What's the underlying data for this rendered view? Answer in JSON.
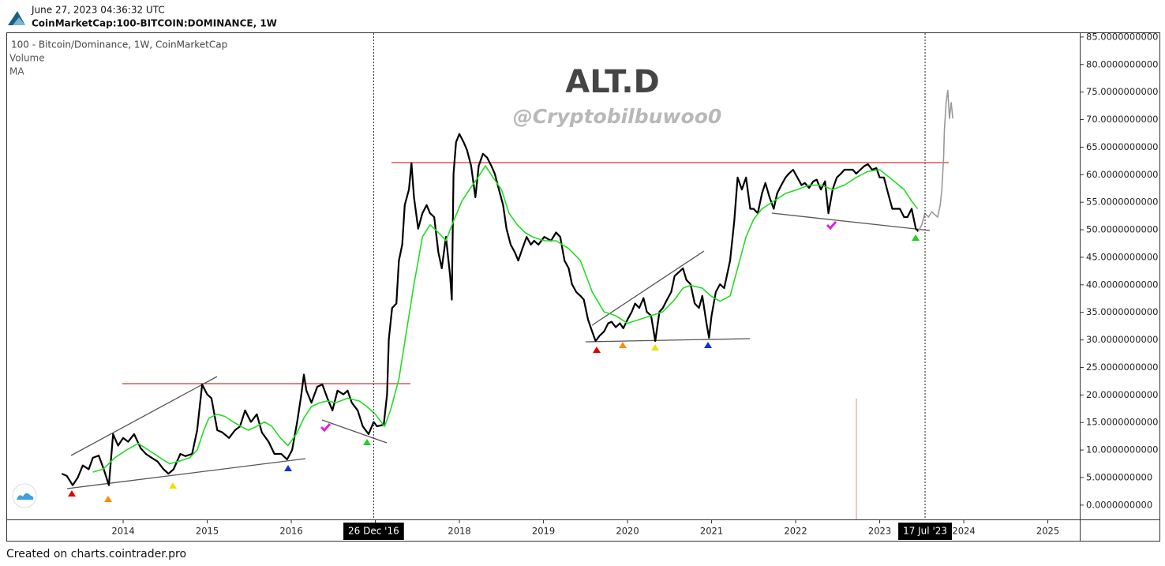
{
  "header": {
    "timestamp": "June 27, 2023 04:36:32 UTC",
    "symbol": "CoinMarketCap:100-BITCOIN:DOMINANCE, 1W"
  },
  "footer": "Created on charts.cointrader.pro",
  "chart_data": {
    "type": "line",
    "title": "ALT.D",
    "subtitle": "@Cryptobilbuwoo0",
    "legend_volume": "Volume",
    "grid": false,
    "xlim": [
      2012.61,
      2025.38
    ],
    "xticks": [
      2014,
      2015,
      2016,
      2017,
      2018,
      2019,
      2020,
      2021,
      2022,
      2023,
      2024,
      2025
    ],
    "ylim": [
      -2.6,
      85.7
    ],
    "yticks": [
      {
        "value": 0,
        "label": "0.0000000000"
      },
      {
        "value": 5,
        "label": "5.0000000000"
      },
      {
        "value": 10,
        "label": "10.0000000000"
      },
      {
        "value": 15,
        "label": "15.0000000000"
      },
      {
        "value": 20,
        "label": "20.0000000000"
      },
      {
        "value": 25,
        "label": "25.0000000000"
      },
      {
        "value": 30,
        "label": "30.0000000000"
      },
      {
        "value": 35,
        "label": "35.0000000000"
      },
      {
        "value": 40,
        "label": "40.0000000000"
      },
      {
        "value": 45,
        "label": "45.0000000000"
      },
      {
        "value": 50,
        "label": "50.0000000000"
      },
      {
        "value": 55,
        "label": "55.0000000000"
      },
      {
        "value": 60,
        "label": "60.0000000000"
      },
      {
        "value": 65,
        "label": "65.0000000000"
      },
      {
        "value": 70,
        "label": "70.0000000000"
      },
      {
        "value": 75,
        "label": "75.0000000000"
      },
      {
        "value": 80,
        "label": "80.0000000000"
      },
      {
        "value": 85,
        "label": "85.0000000000"
      }
    ],
    "crosshairs": [
      {
        "value": 2016.98,
        "label": "26 Dec '16"
      },
      {
        "value": 2023.54,
        "label": "17 Jul '23"
      }
    ],
    "series": [
      {
        "name": "100 - Bitcoin/Dominance, 1W, CoinMarketCap",
        "color": "#000000",
        "x": [
          2013.27,
          2013.33,
          2013.4,
          2013.46,
          2013.52,
          2013.59,
          2013.64,
          2013.71,
          2013.77,
          2013.83,
          2013.88,
          2013.94,
          2014.0,
          2014.06,
          2014.13,
          2014.21,
          2014.27,
          2014.34,
          2014.41,
          2014.48,
          2014.54,
          2014.6,
          2014.68,
          2014.74,
          2014.82,
          2014.88,
          2014.94,
          2015.0,
          2015.05,
          2015.12,
          2015.18,
          2015.26,
          2015.33,
          2015.39,
          2015.45,
          2015.52,
          2015.59,
          2015.65,
          2015.73,
          2015.8,
          2015.88,
          2015.95,
          2016.01,
          2016.07,
          2016.12,
          2016.15,
          2016.18,
          2016.24,
          2016.31,
          2016.37,
          2016.43,
          2016.49,
          2016.55,
          2016.62,
          2016.67,
          2016.72,
          2016.79,
          2016.85,
          2016.92,
          2016.98,
          2017.02,
          2017.1,
          2017.14,
          2017.16,
          2017.2,
          2017.25,
          2017.28,
          2017.32,
          2017.35,
          2017.4,
          2017.43,
          2017.46,
          2017.51,
          2017.56,
          2017.61,
          2017.65,
          2017.7,
          2017.75,
          2017.79,
          2017.84,
          2017.89,
          2017.91,
          2017.93,
          2017.96,
          2018.0,
          2018.05,
          2018.09,
          2018.14,
          2018.19,
          2018.23,
          2018.28,
          2018.33,
          2018.38,
          2018.42,
          2018.47,
          2018.52,
          2018.56,
          2018.61,
          2018.66,
          2018.7,
          2018.75,
          2018.8,
          2018.85,
          2018.89,
          2018.94,
          2019.01,
          2019.09,
          2019.15,
          2019.2,
          2019.25,
          2019.3,
          2019.34,
          2019.39,
          2019.44,
          2019.48,
          2019.53,
          2019.58,
          2019.62,
          2019.67,
          2019.72,
          2019.77,
          2019.81,
          2019.86,
          2019.91,
          2019.95,
          2020.0,
          2020.05,
          2020.09,
          2020.14,
          2020.19,
          2020.23,
          2020.28,
          2020.33,
          2020.38,
          2020.42,
          2020.47,
          2020.52,
          2020.56,
          2020.61,
          2020.66,
          2020.7,
          2020.75,
          2020.8,
          2020.85,
          2020.89,
          2020.94,
          2020.97,
          2021.0,
          2021.05,
          2021.1,
          2021.15,
          2021.22,
          2021.27,
          2021.31,
          2021.36,
          2021.41,
          2021.46,
          2021.5,
          2021.55,
          2021.6,
          2021.64,
          2021.69,
          2021.74,
          2021.78,
          2021.83,
          2021.88,
          2021.92,
          2021.97,
          2022.02,
          2022.07,
          2022.11,
          2022.16,
          2022.21,
          2022.25,
          2022.3,
          2022.35,
          2022.39,
          2022.44,
          2022.49,
          2022.54,
          2022.58,
          2022.63,
          2022.68,
          2022.72,
          2022.77,
          2022.82,
          2022.86,
          2022.91,
          2022.96,
          2023.0,
          2023.05,
          2023.1,
          2023.15,
          2023.19,
          2023.24,
          2023.29,
          2023.33,
          2023.38,
          2023.43,
          2023.46
        ],
        "values": [
          5.7,
          5.3,
          3.6,
          5.0,
          7.2,
          6.5,
          8.6,
          9.0,
          6.5,
          3.6,
          12.9,
          10.8,
          12.2,
          11.5,
          12.9,
          10.3,
          9.3,
          8.6,
          7.9,
          6.5,
          5.7,
          6.5,
          9.3,
          8.9,
          9.3,
          13.6,
          21.9,
          20.1,
          19.4,
          13.6,
          13.2,
          12.2,
          13.6,
          14.3,
          17.2,
          15.1,
          16.5,
          13.2,
          11.5,
          9.3,
          9.3,
          8.3,
          10.0,
          15.1,
          20.1,
          23.7,
          20.8,
          18.6,
          21.5,
          21.9,
          19.4,
          17.2,
          20.8,
          20.1,
          20.8,
          18.6,
          17.2,
          14.3,
          12.9,
          15.1,
          14.3,
          14.6,
          20.1,
          30.1,
          35.8,
          36.6,
          44.4,
          47.3,
          54.5,
          57.3,
          62.1,
          55.9,
          50.2,
          53.0,
          54.5,
          53.0,
          52.3,
          45.9,
          43.0,
          48.7,
          41.6,
          37.3,
          60.2,
          65.9,
          67.4,
          65.9,
          64.5,
          61.6,
          55.9,
          61.6,
          63.8,
          63.1,
          61.6,
          60.2,
          57.3,
          54.5,
          50.2,
          47.3,
          45.9,
          44.4,
          46.6,
          48.7,
          47.3,
          48.0,
          47.3,
          48.7,
          48.0,
          49.5,
          48.7,
          44.4,
          43.0,
          40.1,
          38.7,
          38.0,
          37.3,
          33.7,
          31.5,
          29.8,
          30.8,
          31.5,
          33.0,
          33.3,
          32.3,
          33.0,
          32.1,
          33.7,
          35.1,
          36.6,
          35.8,
          37.6,
          35.1,
          34.4,
          29.8,
          35.1,
          35.8,
          37.3,
          38.7,
          41.6,
          42.3,
          43.0,
          40.9,
          40.1,
          36.6,
          35.8,
          38.0,
          33.0,
          30.4,
          34.4,
          38.7,
          40.1,
          39.4,
          44.4,
          51.6,
          59.5,
          57.3,
          59.5,
          53.8,
          53.8,
          53.0,
          56.6,
          58.5,
          55.9,
          53.8,
          56.6,
          58.1,
          59.5,
          60.2,
          60.9,
          59.5,
          58.1,
          58.5,
          57.6,
          58.8,
          59.1,
          57.3,
          58.8,
          53.0,
          57.3,
          59.5,
          60.2,
          60.9,
          60.9,
          60.9,
          60.2,
          60.9,
          61.6,
          61.9,
          60.9,
          61.2,
          59.5,
          59.5,
          56.6,
          53.8,
          53.8,
          53.8,
          52.3,
          52.3,
          53.8,
          50.2,
          49.7
        ]
      },
      {
        "name": "MA",
        "color": "#22dd22",
        "x": [
          2013.64,
          2013.76,
          2013.9,
          2014.04,
          2014.18,
          2014.27,
          2014.41,
          2014.55,
          2014.65,
          2014.79,
          2014.88,
          2014.96,
          2015.02,
          2015.12,
          2015.21,
          2015.31,
          2015.4,
          2015.49,
          2015.59,
          2015.68,
          2015.77,
          2015.87,
          2015.96,
          2016.06,
          2016.15,
          2016.24,
          2016.34,
          2016.43,
          2016.53,
          2016.67,
          2016.81,
          2016.9,
          2017.0,
          2017.11,
          2017.18,
          2017.28,
          2017.37,
          2017.46,
          2017.56,
          2017.65,
          2017.75,
          2017.84,
          2017.93,
          2018.03,
          2018.12,
          2018.22,
          2018.31,
          2018.4,
          2018.5,
          2018.59,
          2018.69,
          2018.78,
          2018.87,
          2019.01,
          2019.15,
          2019.3,
          2019.44,
          2019.58,
          2019.72,
          2019.86,
          2020.0,
          2020.14,
          2020.28,
          2020.42,
          2020.56,
          2020.66,
          2020.75,
          2020.89,
          2020.99,
          2021.1,
          2021.22,
          2021.31,
          2021.41,
          2021.5,
          2021.6,
          2021.74,
          2021.88,
          2022.02,
          2022.16,
          2022.3,
          2022.44,
          2022.58,
          2022.72,
          2022.86,
          2023.0,
          2023.15,
          2023.29,
          2023.38,
          2023.45
        ],
        "values": [
          6.0,
          6.5,
          8.6,
          10.0,
          11.2,
          10.3,
          8.9,
          7.5,
          7.9,
          8.6,
          10.0,
          13.6,
          15.8,
          16.5,
          16.1,
          15.1,
          14.3,
          13.6,
          14.3,
          15.1,
          14.3,
          12.2,
          10.8,
          12.9,
          15.8,
          17.9,
          18.6,
          18.9,
          18.6,
          19.4,
          18.9,
          17.9,
          16.5,
          14.3,
          17.2,
          22.9,
          31.5,
          40.1,
          48.7,
          50.9,
          49.5,
          48.0,
          51.6,
          55.2,
          57.3,
          59.5,
          61.6,
          59.5,
          57.3,
          53.0,
          50.9,
          49.5,
          48.7,
          48.0,
          48.0,
          46.6,
          44.4,
          38.7,
          35.1,
          34.4,
          33.0,
          33.7,
          34.4,
          35.1,
          37.3,
          39.4,
          39.9,
          39.4,
          38.0,
          37.0,
          38.0,
          43.0,
          48.7,
          51.9,
          53.8,
          55.2,
          56.6,
          57.3,
          58.1,
          58.1,
          57.3,
          58.1,
          59.5,
          60.6,
          60.9,
          59.1,
          57.3,
          55.2,
          53.8
        ]
      },
      {
        "color": "#999999",
        "x": [
          2023.46,
          2023.5,
          2023.54,
          2023.58,
          2023.62,
          2023.65,
          2023.69,
          2023.72,
          2023.74,
          2023.76,
          2023.77,
          2023.79,
          2023.81,
          2023.83,
          2023.85,
          2023.87
        ],
        "values": [
          49.7,
          50.9,
          53.0,
          52.3,
          53.3,
          52.8,
          52.3,
          54.5,
          57.3,
          63.1,
          68.1,
          73.1,
          75.3,
          70.2,
          73.1,
          70.2
        ]
      }
    ]
  }
}
